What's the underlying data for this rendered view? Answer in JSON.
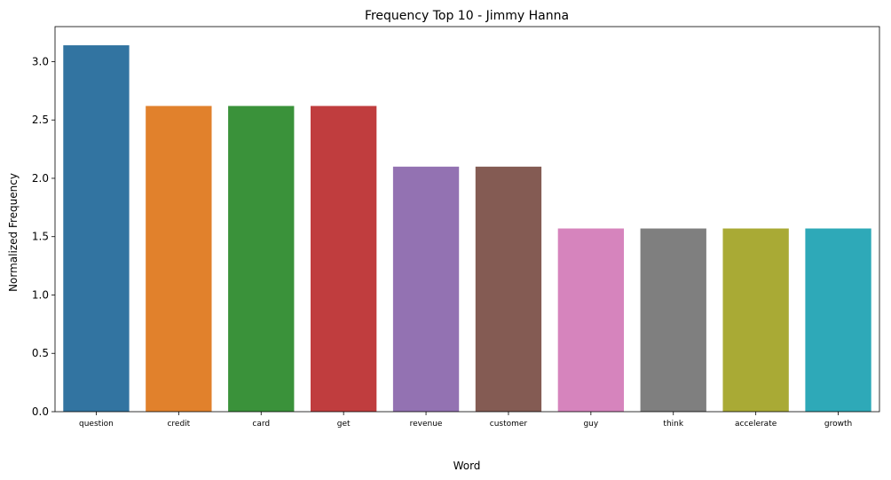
{
  "chart_data": {
    "type": "bar",
    "title": "Frequency Top 10 - Jimmy Hanna",
    "xlabel": "Word",
    "ylabel": "Normalized Frequency",
    "categories": [
      "question",
      "credit",
      "card",
      "get",
      "revenue",
      "customer",
      "guy",
      "think",
      "accelerate",
      "growth"
    ],
    "values": [
      3.14,
      2.62,
      2.62,
      2.62,
      2.1,
      2.1,
      1.57,
      1.57,
      1.57,
      1.57
    ],
    "colors": [
      "#3274a1",
      "#e1812c",
      "#3a923a",
      "#c03d3e",
      "#9372b2",
      "#845b53",
      "#d684bd",
      "#7f7f7f",
      "#a9aa35",
      "#2ea9b8"
    ],
    "ylim": [
      0,
      3.3
    ],
    "yticks": [
      "0.0",
      "0.5",
      "1.0",
      "1.5",
      "2.0",
      "2.5",
      "3.0"
    ],
    "grid": false,
    "legend": "none"
  }
}
